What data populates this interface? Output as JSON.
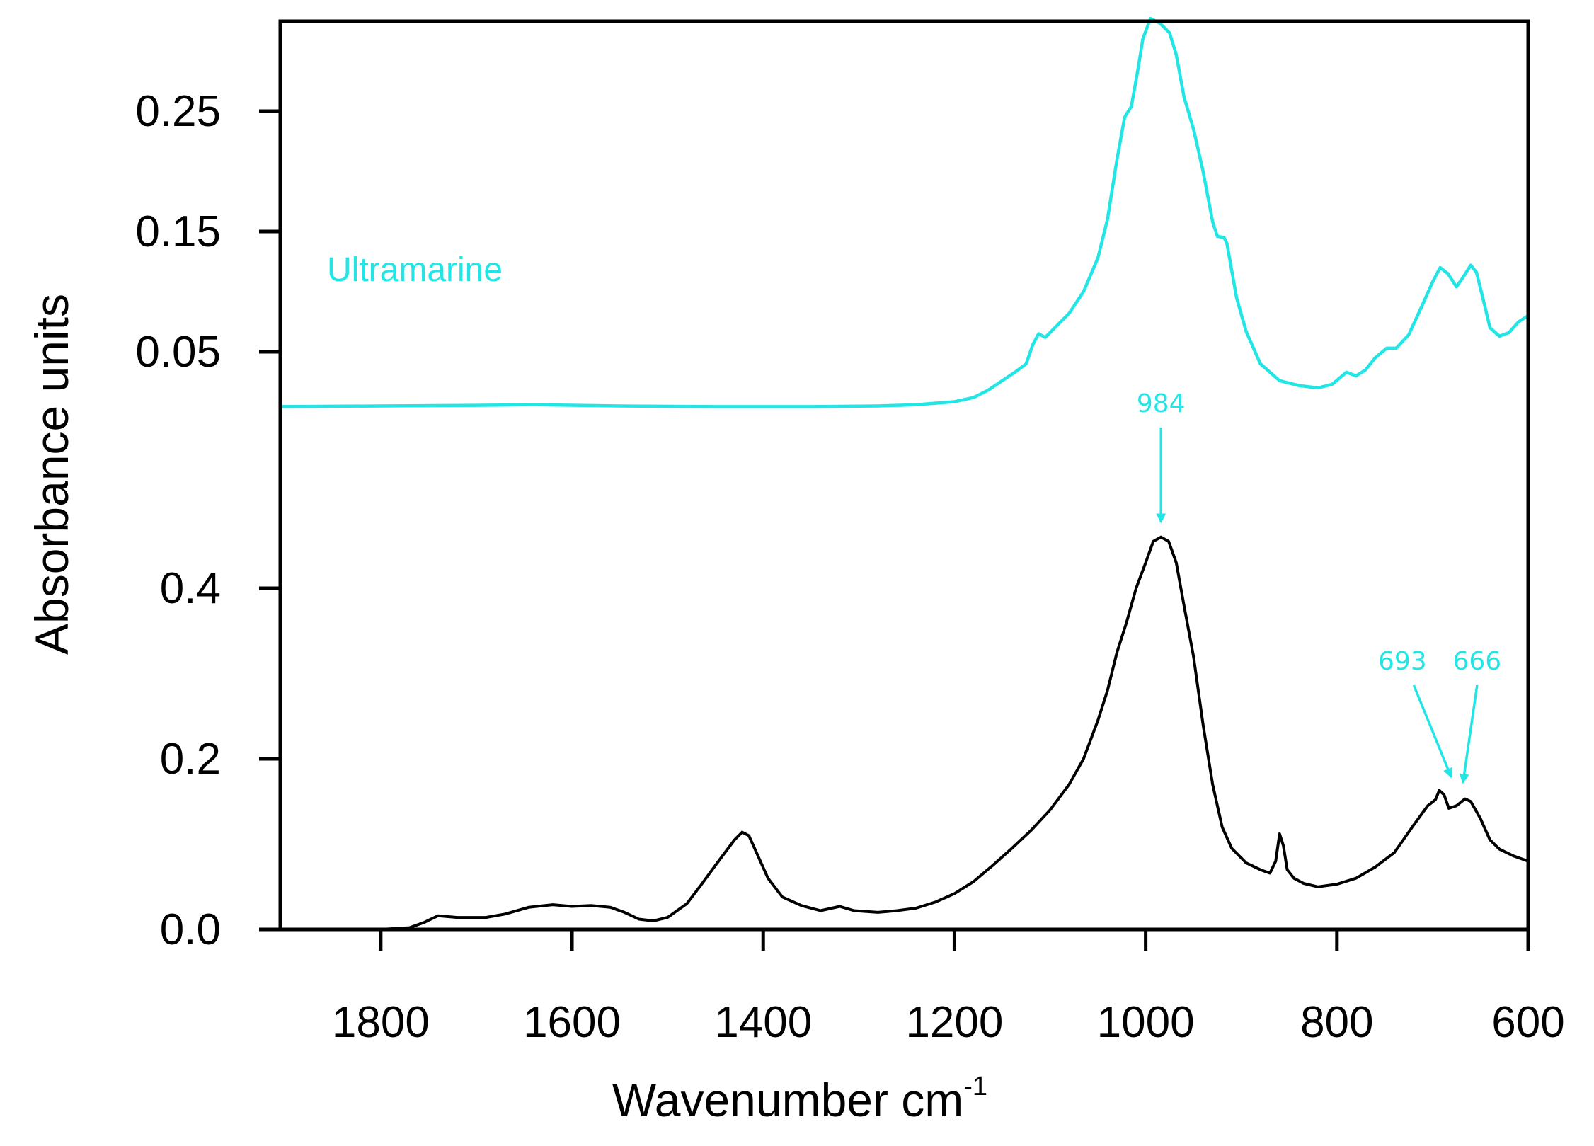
{
  "chart_data": {
    "type": "line",
    "x_axis": {
      "label": "Wavenumber cm",
      "label_superscript": "-1",
      "range": [
        1905,
        600
      ],
      "reversed": true,
      "ticks": [
        1800,
        1600,
        1400,
        1200,
        1000,
        800,
        600
      ],
      "tick_labels": [
        "1800",
        "1600",
        "1400",
        "1200",
        "1000",
        "800",
        "600"
      ]
    },
    "y_axis": {
      "label": "Absorbance units"
    },
    "grid": false,
    "panels": [
      {
        "name": "upper",
        "y_ticks": [
          0.05,
          0.15,
          0.25
        ],
        "y_tick_labels": [
          "0.05",
          "0.15",
          "0.25"
        ],
        "series": [
          {
            "name": "Ultramarine",
            "color": "#22e5e5",
            "points": [
              [
                1905,
                0.0045
              ],
              [
                1800,
                0.005
              ],
              [
                1700,
                0.0055
              ],
              [
                1640,
                0.006
              ],
              [
                1550,
                0.005
              ],
              [
                1450,
                0.0045
              ],
              [
                1350,
                0.0045
              ],
              [
                1280,
                0.005
              ],
              [
                1240,
                0.006
              ],
              [
                1200,
                0.0085
              ],
              [
                1180,
                0.012
              ],
              [
                1165,
                0.018
              ],
              [
                1150,
                0.026
              ],
              [
                1135,
                0.034
              ],
              [
                1125,
                0.04
              ],
              [
                1118,
                0.056
              ],
              [
                1112,
                0.065
              ],
              [
                1105,
                0.062
              ],
              [
                1095,
                0.07
              ],
              [
                1080,
                0.082
              ],
              [
                1065,
                0.1
              ],
              [
                1050,
                0.128
              ],
              [
                1040,
                0.16
              ],
              [
                1030,
                0.21
              ],
              [
                1022,
                0.245
              ],
              [
                1015,
                0.254
              ],
              [
                1008,
                0.285
              ],
              [
                1003,
                0.31
              ],
              [
                995,
                0.327
              ],
              [
                985,
                0.323
              ],
              [
                975,
                0.315
              ],
              [
                968,
                0.297
              ],
              [
                960,
                0.262
              ],
              [
                950,
                0.235
              ],
              [
                940,
                0.2
              ],
              [
                930,
                0.158
              ],
              [
                925,
                0.146
              ],
              [
                918,
                0.145
              ],
              [
                915,
                0.14
              ],
              [
                905,
                0.095
              ],
              [
                895,
                0.067
              ],
              [
                880,
                0.04
              ],
              [
                860,
                0.026
              ],
              [
                840,
                0.022
              ],
              [
                820,
                0.02
              ],
              [
                805,
                0.023
              ],
              [
                790,
                0.033
              ],
              [
                780,
                0.03
              ],
              [
                770,
                0.035
              ],
              [
                760,
                0.045
              ],
              [
                748,
                0.053
              ],
              [
                738,
                0.053
              ],
              [
                725,
                0.064
              ],
              [
                710,
                0.09
              ],
              [
                700,
                0.108
              ],
              [
                692,
                0.12
              ],
              [
                684,
                0.115
              ],
              [
                675,
                0.104
              ],
              [
                668,
                0.112
              ],
              [
                660,
                0.122
              ],
              [
                654,
                0.116
              ],
              [
                646,
                0.09
              ],
              [
                640,
                0.07
              ],
              [
                630,
                0.063
              ],
              [
                620,
                0.066
              ],
              [
                610,
                0.075
              ],
              [
                600,
                0.08
              ]
            ]
          }
        ]
      },
      {
        "name": "lower",
        "y_ticks": [
          0.0,
          0.2,
          0.4
        ],
        "y_tick_labels": [
          "0.0",
          "0.2",
          "0.4"
        ],
        "series": [
          {
            "name": "",
            "color": "#000000",
            "points": [
              [
                1800,
                0.0
              ],
              [
                1770,
                0.002
              ],
              [
                1755,
                0.008
              ],
              [
                1740,
                0.016
              ],
              [
                1720,
                0.014
              ],
              [
                1690,
                0.014
              ],
              [
                1670,
                0.018
              ],
              [
                1645,
                0.026
              ],
              [
                1620,
                0.029
              ],
              [
                1600,
                0.027
              ],
              [
                1580,
                0.028
              ],
              [
                1560,
                0.026
              ],
              [
                1545,
                0.02
              ],
              [
                1530,
                0.012
              ],
              [
                1515,
                0.01
              ],
              [
                1500,
                0.014
              ],
              [
                1480,
                0.03
              ],
              [
                1465,
                0.052
              ],
              [
                1450,
                0.075
              ],
              [
                1440,
                0.09
              ],
              [
                1430,
                0.105
              ],
              [
                1422,
                0.114
              ],
              [
                1415,
                0.11
              ],
              [
                1405,
                0.085
              ],
              [
                1395,
                0.06
              ],
              [
                1380,
                0.038
              ],
              [
                1360,
                0.028
              ],
              [
                1340,
                0.022
              ],
              [
                1320,
                0.027
              ],
              [
                1305,
                0.022
              ],
              [
                1280,
                0.02
              ],
              [
                1260,
                0.022
              ],
              [
                1240,
                0.025
              ],
              [
                1220,
                0.032
              ],
              [
                1200,
                0.042
              ],
              [
                1180,
                0.056
              ],
              [
                1160,
                0.075
              ],
              [
                1140,
                0.095
              ],
              [
                1120,
                0.116
              ],
              [
                1100,
                0.14
              ],
              [
                1080,
                0.17
              ],
              [
                1065,
                0.2
              ],
              [
                1050,
                0.245
              ],
              [
                1040,
                0.28
              ],
              [
                1030,
                0.325
              ],
              [
                1020,
                0.36
              ],
              [
                1010,
                0.4
              ],
              [
                1000,
                0.43
              ],
              [
                992,
                0.455
              ],
              [
                984,
                0.46
              ],
              [
                976,
                0.455
              ],
              [
                968,
                0.43
              ],
              [
                960,
                0.38
              ],
              [
                950,
                0.32
              ],
              [
                940,
                0.24
              ],
              [
                930,
                0.17
              ],
              [
                920,
                0.12
              ],
              [
                910,
                0.095
              ],
              [
                895,
                0.078
              ],
              [
                880,
                0.07
              ],
              [
                870,
                0.066
              ],
              [
                864,
                0.08
              ],
              [
                860,
                0.112
              ],
              [
                856,
                0.098
              ],
              [
                852,
                0.07
              ],
              [
                845,
                0.06
              ],
              [
                835,
                0.054
              ],
              [
                820,
                0.05
              ],
              [
                800,
                0.053
              ],
              [
                780,
                0.06
              ],
              [
                760,
                0.073
              ],
              [
                740,
                0.09
              ],
              [
                720,
                0.122
              ],
              [
                705,
                0.145
              ],
              [
                697,
                0.152
              ],
              [
                693,
                0.163
              ],
              [
                688,
                0.158
              ],
              [
                683,
                0.142
              ],
              [
                675,
                0.145
              ],
              [
                666,
                0.153
              ],
              [
                660,
                0.15
              ],
              [
                650,
                0.13
              ],
              [
                640,
                0.105
              ],
              [
                630,
                0.094
              ],
              [
                615,
                0.086
              ],
              [
                600,
                0.08
              ]
            ]
          }
        ],
        "annotations": [
          {
            "label": "984",
            "x": 984,
            "color": "#22e5e5"
          },
          {
            "label": "693",
            "x": 693,
            "color": "#22e5e5"
          },
          {
            "label": "666",
            "x": 666,
            "color": "#22e5e5"
          }
        ]
      }
    ]
  }
}
